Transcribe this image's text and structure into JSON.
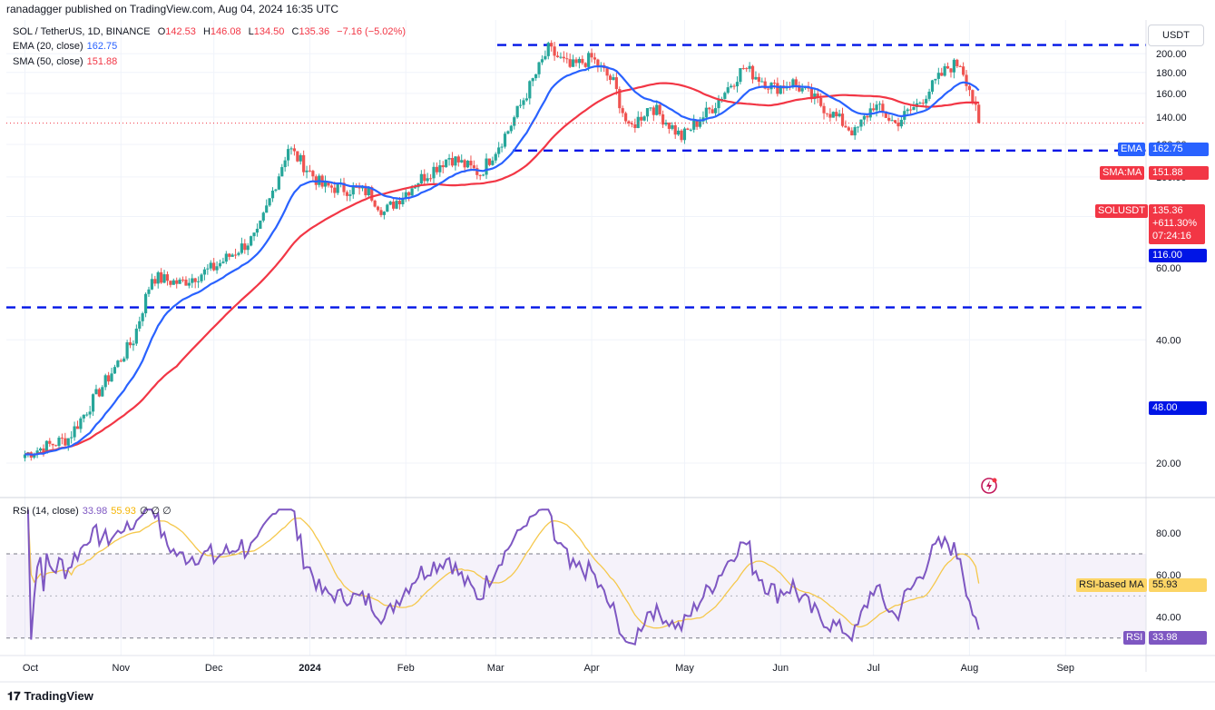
{
  "header": {
    "publisher_line": "ranadagger published on TradingView.com, Aug 04, 2024 16:35 UTC"
  },
  "legend": {
    "symbol": "SOL / TetherUS, 1D, BINANCE",
    "open_key": "O",
    "open": "142.53",
    "high_key": "H",
    "high": "146.08",
    "low_key": "L",
    "low": "134.50",
    "close_key": "C",
    "close": "135.36",
    "change": "−7.16 (−5.02%)",
    "ema_label": "EMA (20, close)",
    "ema_value": "162.75",
    "sma_label": "SMA (50, close)",
    "sma_value": "151.88",
    "rsi_label": "RSI (14, close)",
    "rsi_value": "33.98",
    "rsi_ma_value": "55.93",
    "rsi_extra": "∅ ∅ ∅"
  },
  "currency": "USDT",
  "price_tags": {
    "ema_name": "EMA",
    "ema_value": "162.75",
    "sma_name": "SMA:MA",
    "sma_value": "151.88",
    "sym_name": "SOLUSDT",
    "sym_value": "135.36",
    "sym_change": "+611.30%",
    "sym_timer": "07:24:16",
    "level_116": "116.00",
    "level_48": "48.00",
    "rsi_ma_name": "RSI-based MA",
    "rsi_ma_value": "55.93",
    "rsi_name": "RSI",
    "rsi_value": "33.98"
  },
  "brand": "TradingView",
  "colors": {
    "up": "#26a69a",
    "down": "#ef5350",
    "ema": "#2962ff",
    "sma": "#f23645",
    "rsi": "#7e57c2",
    "rsi_ma": "#f5c84c",
    "level": "#0015e6",
    "grid": "#f0f3fa"
  },
  "chart_data": [
    {
      "type": "candlestick",
      "name": "SOL / TetherUS",
      "scale": "log",
      "ylim": [
        19,
        215
      ],
      "y_ticks": [
        "20.00",
        "40.00",
        "60.00",
        "80.00",
        "100.00",
        "120.00",
        "140.00",
        "160.00",
        "180.00",
        "200.00"
      ],
      "x_ticks": [
        "Oct",
        "Nov",
        "Dec",
        "2024",
        "Feb",
        "Mar",
        "Apr",
        "May",
        "Jun",
        "Jul",
        "Aug",
        "Sep"
      ],
      "horizontal_levels": [
        210,
        116,
        48
      ],
      "price_path": [
        [
          "2023-10-01",
          21
        ],
        [
          "2023-10-15",
          23
        ],
        [
          "2023-10-25",
          30
        ],
        [
          "2023-11-05",
          40
        ],
        [
          "2023-11-11",
          57
        ],
        [
          "2023-11-20",
          55
        ],
        [
          "2023-12-01",
          60
        ],
        [
          "2023-12-15",
          72
        ],
        [
          "2023-12-25",
          118
        ],
        [
          "2024-01-05",
          95
        ],
        [
          "2024-01-20",
          92
        ],
        [
          "2024-01-25",
          82
        ],
        [
          "2024-02-05",
          98
        ],
        [
          "2024-02-15",
          112
        ],
        [
          "2024-02-25",
          102
        ],
        [
          "2024-03-05",
          130
        ],
        [
          "2024-03-18",
          205
        ],
        [
          "2024-03-25",
          185
        ],
        [
          "2024-04-01",
          195
        ],
        [
          "2024-04-08",
          170
        ],
        [
          "2024-04-13",
          130
        ],
        [
          "2024-04-20",
          150
        ],
        [
          "2024-04-30",
          125
        ],
        [
          "2024-05-10",
          148
        ],
        [
          "2024-05-20",
          185
        ],
        [
          "2024-05-30",
          165
        ],
        [
          "2024-06-05",
          170
        ],
        [
          "2024-06-15",
          148
        ],
        [
          "2024-06-25",
          128
        ],
        [
          "2024-07-01",
          150
        ],
        [
          "2024-07-08",
          135
        ],
        [
          "2024-07-15",
          150
        ],
        [
          "2024-07-25",
          185
        ],
        [
          "2024-07-29",
          190
        ],
        [
          "2024-08-01",
          165
        ],
        [
          "2024-08-04",
          135.36
        ]
      ],
      "ema_20_last": 162.75,
      "sma_50_last": 151.88,
      "last_close": 135.36
    },
    {
      "type": "line",
      "name": "RSI (14, close)",
      "ylim": [
        26,
        92
      ],
      "y_ticks": [
        "40.00",
        "60.00",
        "80.00"
      ],
      "band": [
        30,
        70
      ],
      "midline": 50,
      "rsi_last": 33.98,
      "rsi_ma_last": 55.93
    }
  ]
}
